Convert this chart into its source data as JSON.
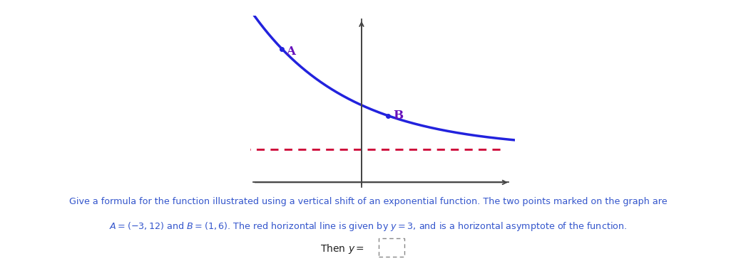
{
  "curve_color": "#2222dd",
  "asymptote_color": "#cc0033",
  "asymptote_y": 3,
  "point_A": [
    -3,
    12
  ],
  "point_B": [
    1,
    6
  ],
  "label_A": "A",
  "label_B": "B",
  "label_color": "#6611bb",
  "x_range": [
    -4.2,
    5.8
  ],
  "y_range": [
    -0.5,
    15.0
  ],
  "description_line1": "Give a formula for the function illustrated using a vertical shift of an exponential function. The two points marked on the graph are",
  "description_line2": "and $B = (1, 6)$. The red horizontal line is given by $y = 3$, and is a horizontal asymptote of the function.",
  "text_color": "#3355cc",
  "background_color": "#ffffff",
  "curve_linewidth": 2.5,
  "asymptote_linewidth": 2.0,
  "axis_color": "#444444"
}
